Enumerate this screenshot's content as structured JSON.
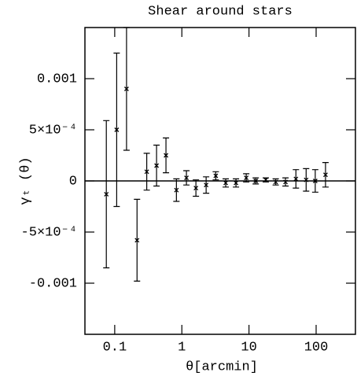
{
  "chart_data": {
    "type": "scatter",
    "title": "Shear around stars",
    "x_label": "θ[arcmin]",
    "y_label": "γₜ (θ)",
    "x": [
      0.075,
      0.107,
      0.15,
      0.215,
      0.3,
      0.42,
      0.58,
      0.83,
      1.17,
      1.62,
      2.3,
      3.2,
      4.5,
      6.4,
      9.1,
      12.6,
      17.8,
      25,
      35,
      50,
      71,
      97,
      138
    ],
    "series": [
      {
        "color": "#000000",
        "values": [
          -0.00013,
          0.0005,
          0.0009,
          -0.00058,
          9e-05,
          0.00015,
          0.00025,
          -9e-05,
          3e-05,
          -7e-05,
          -4e-05,
          5e-05,
          -2e-05,
          -2e-05,
          3e-05,
          0,
          1e-05,
          -1e-05,
          -1e-05,
          2e-05,
          1e-05,
          0,
          6e-05
        ],
        "errors": [
          0.00072,
          0.00075,
          0.0006,
          0.0004,
          0.00018,
          0.0002,
          0.00017,
          0.00011,
          7e-05,
          8e-05,
          8e-05,
          4e-05,
          4e-05,
          4e-05,
          4e-05,
          3e-05,
          2e-05,
          3e-05,
          4e-05,
          9e-05,
          0.00011,
          0.00011,
          0.00012
        ]
      }
    ],
    "xlim": [
      0.036,
      385
    ],
    "ylim": [
      -0.0015,
      0.0015
    ],
    "log_x": true,
    "xticks": [
      0.1,
      1,
      10,
      100
    ],
    "yticks": [
      -0.001,
      {
        "value": -0.0005,
        "label": "-5×10⁻⁴"
      },
      0,
      {
        "value": 0.0005,
        "label": "5×10⁻⁴"
      },
      0.001
    ],
    "zero_line": true
  }
}
